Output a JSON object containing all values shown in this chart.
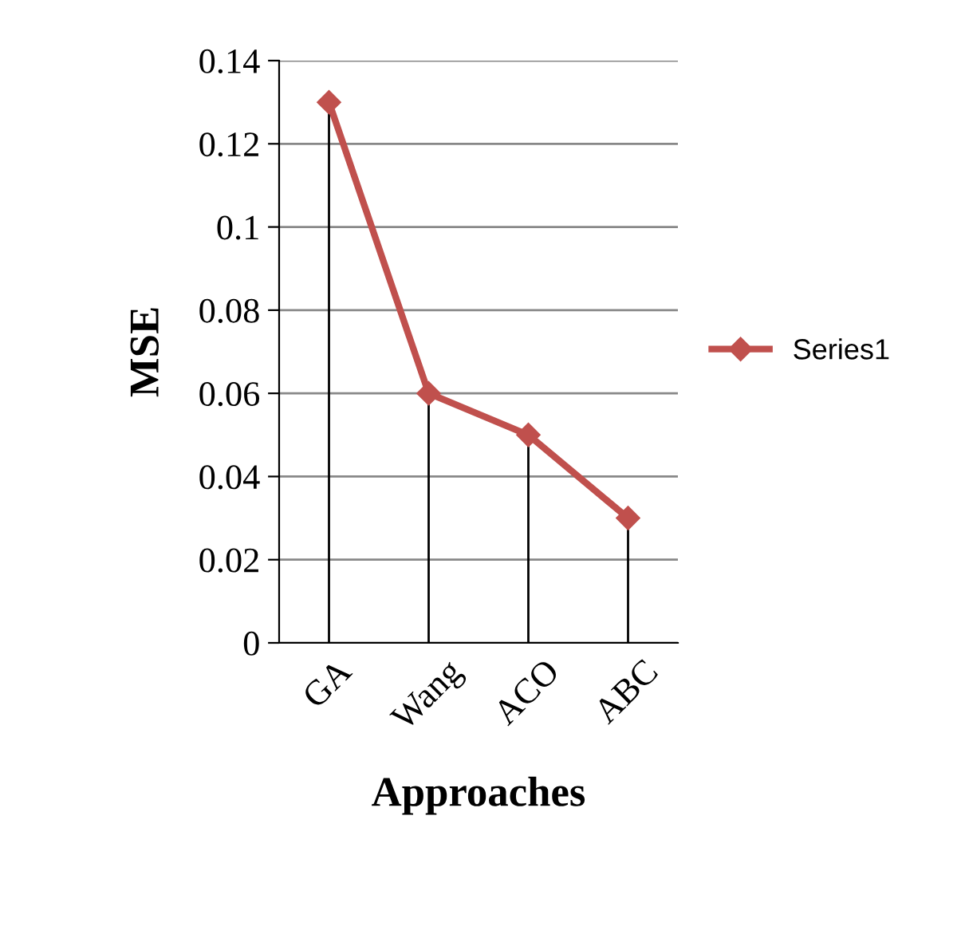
{
  "chart_data": {
    "type": "line",
    "xlabel": "Approaches",
    "ylabel": "MSE",
    "categories": [
      "GA",
      "Wang",
      "ACO",
      "ABC"
    ],
    "series": [
      {
        "name": "Series1",
        "color": "#c0504d",
        "marker": "diamond",
        "values": [
          0.13,
          0.06,
          0.05,
          0.03
        ],
        "errors": [
          [
            0.13,
            0
          ],
          [
            0.06,
            0
          ],
          [
            0.05,
            0
          ],
          [
            0.03,
            0
          ]
        ]
      }
    ],
    "ylim": [
      0,
      0.14
    ],
    "yticks": [
      0,
      0.02,
      0.04,
      0.06,
      0.08,
      0.1,
      0.12,
      0.14
    ],
    "grid": "y",
    "legend": "right",
    "line_style": "solid"
  }
}
